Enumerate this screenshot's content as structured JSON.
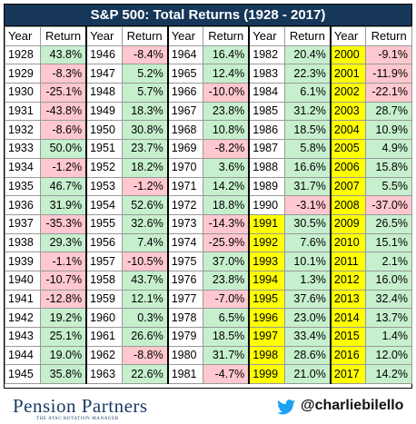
{
  "chart_data": {
    "type": "table",
    "title": "S&P 500: Total Returns (1928 - 2017)",
    "column_headers": [
      "Year",
      "Return"
    ],
    "unit": "%",
    "colors": {
      "positive": "#c6efce",
      "negative": "#ffc7ce",
      "highlight_year": "#ffff00",
      "title_bg": "#16375a"
    },
    "highlighted_years_range": [
      1991,
      2017
    ],
    "columns": [
      [
        [
          1928,
          43.8
        ],
        [
          1929,
          -8.3
        ],
        [
          1930,
          -25.1
        ],
        [
          1931,
          -43.8
        ],
        [
          1932,
          -8.6
        ],
        [
          1933,
          50.0
        ],
        [
          1934,
          -1.2
        ],
        [
          1935,
          46.7
        ],
        [
          1936,
          31.9
        ],
        [
          1937,
          -35.3
        ],
        [
          1938,
          29.3
        ],
        [
          1939,
          -1.1
        ],
        [
          1940,
          -10.7
        ],
        [
          1941,
          -12.8
        ],
        [
          1942,
          19.2
        ],
        [
          1943,
          25.1
        ],
        [
          1944,
          19.0
        ],
        [
          1945,
          35.8
        ]
      ],
      [
        [
          1946,
          -8.4
        ],
        [
          1947,
          5.2
        ],
        [
          1948,
          5.7
        ],
        [
          1949,
          18.3
        ],
        [
          1950,
          30.8
        ],
        [
          1951,
          23.7
        ],
        [
          1952,
          18.2
        ],
        [
          1953,
          -1.2
        ],
        [
          1954,
          52.6
        ],
        [
          1955,
          32.6
        ],
        [
          1956,
          7.4
        ],
        [
          1957,
          -10.5
        ],
        [
          1958,
          43.7
        ],
        [
          1959,
          12.1
        ],
        [
          1960,
          0.3
        ],
        [
          1961,
          26.6
        ],
        [
          1962,
          -8.8
        ],
        [
          1963,
          22.6
        ]
      ],
      [
        [
          1964,
          16.4
        ],
        [
          1965,
          12.4
        ],
        [
          1966,
          -10.0
        ],
        [
          1967,
          23.8
        ],
        [
          1968,
          10.8
        ],
        [
          1969,
          -8.2
        ],
        [
          1970,
          3.6
        ],
        [
          1971,
          14.2
        ],
        [
          1972,
          18.8
        ],
        [
          1973,
          -14.3
        ],
        [
          1974,
          -25.9
        ],
        [
          1975,
          37.0
        ],
        [
          1976,
          23.8
        ],
        [
          1977,
          -7.0
        ],
        [
          1978,
          6.5
        ],
        [
          1979,
          18.5
        ],
        [
          1980,
          31.7
        ],
        [
          1981,
          -4.7
        ]
      ],
      [
        [
          1982,
          20.4
        ],
        [
          1983,
          22.3
        ],
        [
          1984,
          6.1
        ],
        [
          1985,
          31.2
        ],
        [
          1986,
          18.5
        ],
        [
          1987,
          5.8
        ],
        [
          1988,
          16.6
        ],
        [
          1989,
          31.7
        ],
        [
          1990,
          -3.1
        ],
        [
          1991,
          30.5
        ],
        [
          1992,
          7.6
        ],
        [
          1993,
          10.1
        ],
        [
          1994,
          1.3
        ],
        [
          1995,
          37.6
        ],
        [
          1996,
          23.0
        ],
        [
          1997,
          33.4
        ],
        [
          1998,
          28.6
        ],
        [
          1999,
          21.0
        ]
      ],
      [
        [
          2000,
          -9.1
        ],
        [
          2001,
          -11.9
        ],
        [
          2002,
          -22.1
        ],
        [
          2003,
          28.7
        ],
        [
          2004,
          10.9
        ],
        [
          2005,
          4.9
        ],
        [
          2006,
          15.8
        ],
        [
          2007,
          5.5
        ],
        [
          2008,
          -37.0
        ],
        [
          2009,
          26.5
        ],
        [
          2010,
          15.1
        ],
        [
          2011,
          2.1
        ],
        [
          2012,
          16.0
        ],
        [
          2013,
          32.4
        ],
        [
          2014,
          13.7
        ],
        [
          2015,
          1.4
        ],
        [
          2016,
          12.0
        ],
        [
          2017,
          14.2
        ]
      ]
    ]
  },
  "footer": {
    "logo_text": "Pension Partners",
    "logo_subtext": "THE ATAC ROTATION MANAGER",
    "twitter_icon": "twitter-bird-icon",
    "twitter_handle": "@charliebilello",
    "twitter_color": "#1da1f2"
  }
}
